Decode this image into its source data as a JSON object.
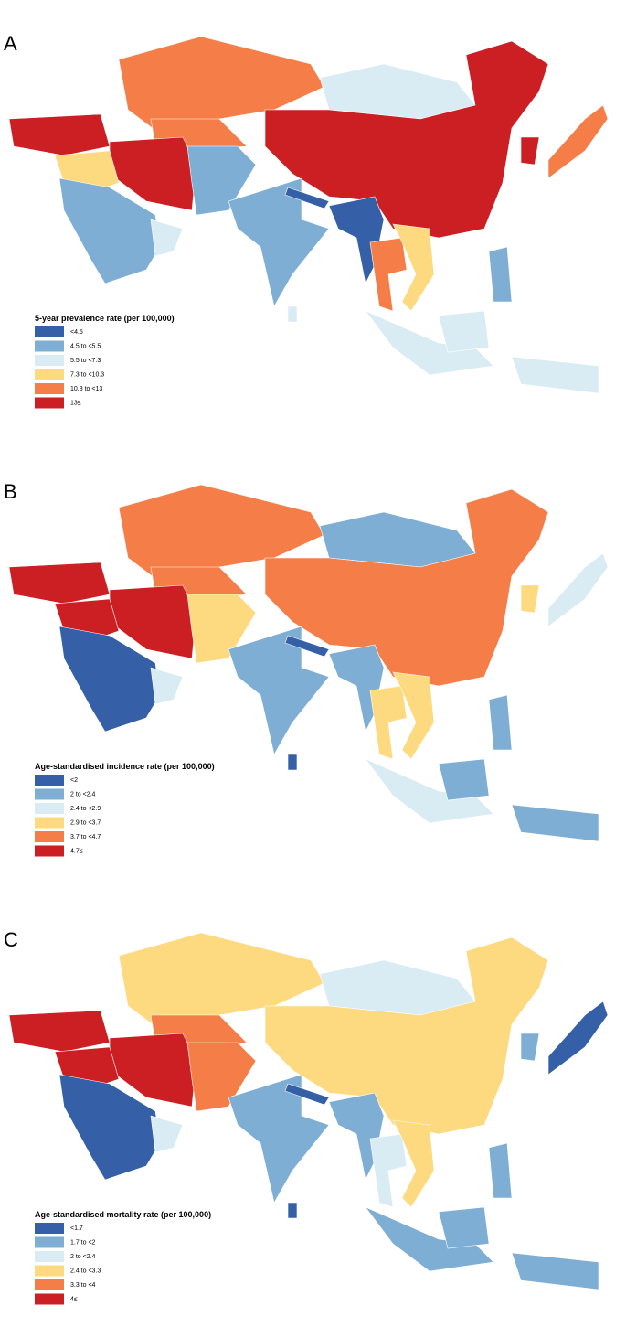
{
  "panels": [
    {
      "letter": "A",
      "legend": {
        "title": "5-year prevalence rate (per 100,000)",
        "items": [
          {
            "label": "<4.5",
            "color": "#3560a8"
          },
          {
            "label": "4.5 to <5.5",
            "color": "#7eaed4"
          },
          {
            "label": "5.5 to <7.3",
            "color": "#d9ecf3"
          },
          {
            "label": "7.3 to <10.3",
            "color": "#fdd97f"
          },
          {
            "label": "10.3 to <13",
            "color": "#f57e48"
          },
          {
            "label": "13≤",
            "color": "#cc1f24"
          }
        ]
      }
    },
    {
      "letter": "B",
      "legend": {
        "title": "Age-standardised incidence rate (per 100,000)",
        "items": [
          {
            "label": "<2",
            "color": "#3560a8"
          },
          {
            "label": "2 to <2.4",
            "color": "#7eaed4"
          },
          {
            "label": "2.4 to <2.9",
            "color": "#d9ecf3"
          },
          {
            "label": "2.9 to <3.7",
            "color": "#fdd97f"
          },
          {
            "label": "3.7 to <4.7",
            "color": "#f57e48"
          },
          {
            "label": "4.7≤",
            "color": "#cc1f24"
          }
        ]
      }
    },
    {
      "letter": "C",
      "legend": {
        "title": "Age-standardised mortality rate (per 100,000)",
        "items": [
          {
            "label": "<1.7",
            "color": "#3560a8"
          },
          {
            "label": "1.7 to <2",
            "color": "#7eaed4"
          },
          {
            "label": "2 to <2.4",
            "color": "#d9ecf3"
          },
          {
            "label": "2.4 to <3.3",
            "color": "#fdd97f"
          },
          {
            "label": "3.3 to <4",
            "color": "#f57e48"
          },
          {
            "label": "4≤",
            "color": "#cc1f24"
          }
        ]
      }
    }
  ]
}
